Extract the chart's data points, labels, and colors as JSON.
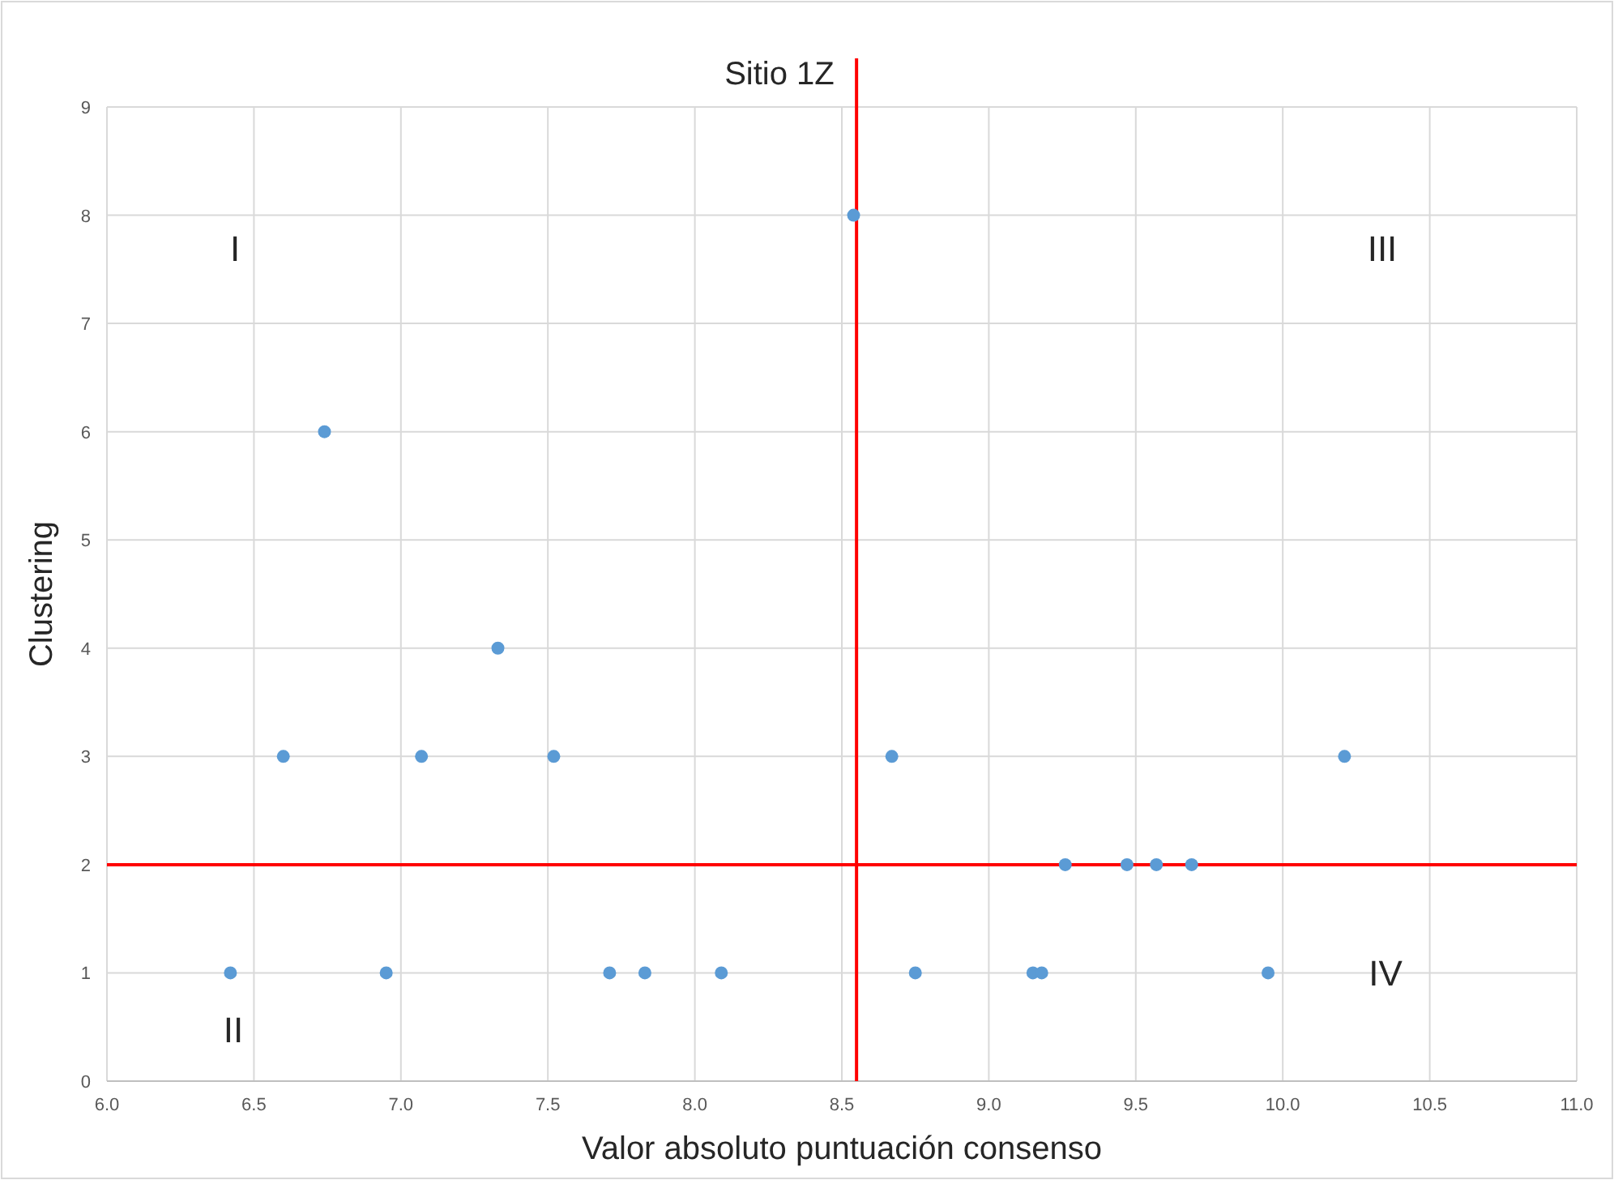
{
  "chart_data": {
    "type": "scatter",
    "title": "Sitio 1Z",
    "xlabel": "Valor absoluto puntuación consenso",
    "ylabel": "Clustering",
    "x": [
      6.42,
      6.6,
      6.74,
      6.95,
      7.07,
      7.33,
      7.52,
      7.71,
      7.83,
      8.09,
      8.54,
      8.67,
      8.75,
      9.15,
      9.18,
      9.26,
      9.47,
      9.57,
      9.69,
      9.95,
      10.21
    ],
    "values": [
      1,
      3,
      6,
      1,
      3,
      4,
      3,
      1,
      1,
      1,
      8,
      3,
      1,
      1,
      1,
      2,
      2,
      2,
      2,
      1,
      3
    ],
    "color": "#5b9bd5",
    "marker": "circle",
    "grid": true,
    "xlim": [
      6,
      11
    ],
    "xticks": [
      {
        "value": 6,
        "label": "6.0"
      },
      {
        "value": 6.5,
        "label": "6.5"
      },
      {
        "value": 7,
        "label": "7.0"
      },
      {
        "value": 7.5,
        "label": "7.5"
      },
      {
        "value": 8,
        "label": "8.0"
      },
      {
        "value": 8.5,
        "label": "8.5"
      },
      {
        "value": 9,
        "label": "9.0"
      },
      {
        "value": 9.5,
        "label": "9.5"
      },
      {
        "value": 10,
        "label": "10.0"
      },
      {
        "value": 10.5,
        "label": "10.5"
      },
      {
        "value": 11,
        "label": "11.0"
      }
    ],
    "ylim": [
      0,
      9
    ],
    "yticks": [
      0,
      1,
      2,
      3,
      4,
      5,
      6,
      7,
      8,
      9
    ],
    "ref_lines": [
      {
        "axis": "x",
        "value": 8.55,
        "color": "#ff0000"
      },
      {
        "axis": "y",
        "value": 2,
        "color": "#ff0000"
      }
    ],
    "annotations": [
      "I",
      "II",
      "III",
      "IV"
    ]
  }
}
